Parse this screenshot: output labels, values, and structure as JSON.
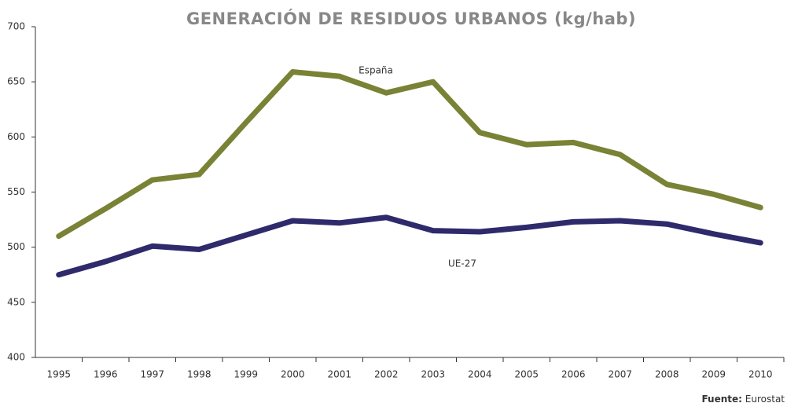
{
  "chart_data": {
    "type": "line",
    "title": "GENERACIÓN DE RESIDUOS URBANOS (kg/hab)",
    "categories": [
      "1995",
      "1996",
      "1997",
      "1998",
      "1999",
      "2000",
      "2001",
      "2002",
      "2003",
      "2004",
      "2005",
      "2006",
      "2007",
      "2008",
      "2009",
      "2010"
    ],
    "series": [
      {
        "name": "España",
        "color": "#7a8235",
        "values": [
          510,
          535,
          561,
          566,
          613,
          659,
          655,
          640,
          650,
          604,
          593,
          595,
          584,
          557,
          548,
          536
        ]
      },
      {
        "name": "UE-27",
        "color": "#2e2a6b",
        "values": [
          475,
          487,
          501,
          498,
          511,
          524,
          522,
          527,
          515,
          514,
          518,
          523,
          524,
          521,
          512,
          504
        ]
      }
    ],
    "ylim": [
      400,
      700
    ],
    "yticks": [
      400,
      450,
      500,
      550,
      600,
      650,
      700
    ],
    "source_label": "Fuente:",
    "source": "Eurostat"
  }
}
